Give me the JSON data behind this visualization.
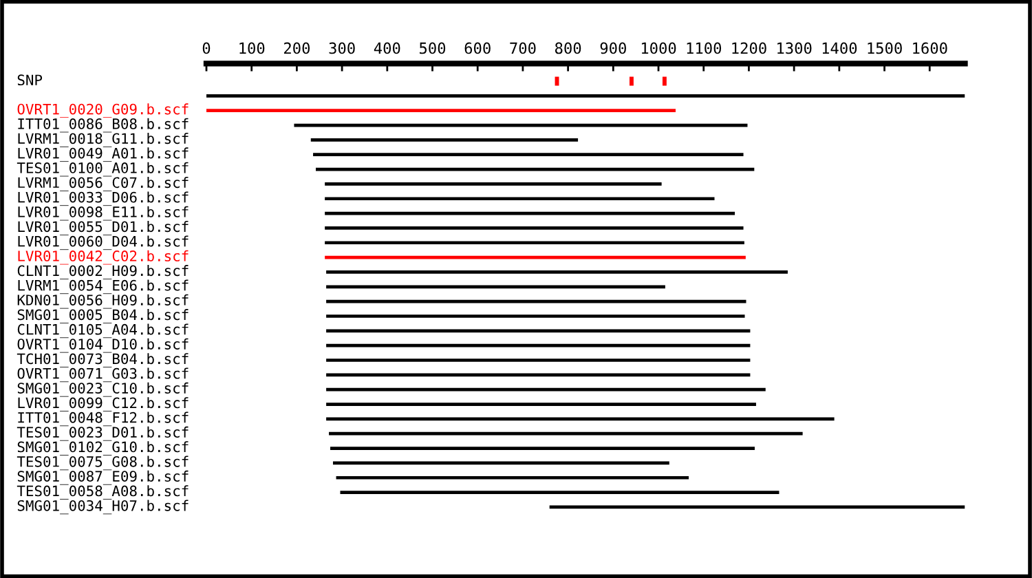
{
  "chart_data": {
    "type": "bar",
    "orientation": "horizontal",
    "categories": [
      "SNP",
      null,
      "OVRT1_0020_G09.b.scf",
      "ITT01_0086_B08.b.scf",
      "LVRM1_0018_G11.b.scf",
      "LVR01_0049_A01.b.scf",
      "TES01_0100_A01.b.scf",
      "LVRM1_0056_C07.b.scf",
      "LVR01_0033_D06.b.scf",
      "LVR01_0098_E11.b.scf",
      "LVR01_0055_D01.b.scf",
      "LVR01_0060_D04.b.scf",
      "LVR01_0042_C02.b.scf",
      "CLNT1_0002_H09.b.scf",
      "LVRM1_0054_E06.b.scf",
      "KDN01_0056_H09.b.scf",
      "SMG01_0005_B04.b.scf",
      "CLNT1_0105_A04.b.scf",
      "OVRT1_0104_D10.b.scf",
      "TCH01_0073_B04.b.scf",
      "OVRT1_0071_G03.b.scf",
      "SMG01_0023_C10.b.scf",
      "LVR01_0099_C12.b.scf",
      "ITT01_0048_F12.b.scf",
      "TES01_0023_D01.b.scf",
      "SMG01_0102_G10.b.scf",
      "TES01_0075_G08.b.scf",
      "SMG01_0087_E09.b.scf",
      "TES01_0058_A08.b.scf",
      "SMG01_0034_H07.b.scf"
    ],
    "series": [
      {
        "base": [
          null,
          0,
          0,
          194,
          231,
          236,
          242,
          262,
          262,
          262,
          262,
          262,
          262,
          265,
          265,
          265,
          265,
          265,
          265,
          265,
          265,
          265,
          265,
          265,
          271,
          274,
          280,
          287,
          296,
          759
        ],
        "values": [
          null,
          1678,
          1038,
          1003,
          591,
          952,
          970,
          745,
          862,
          907,
          926,
          928,
          931,
          1021,
          750,
          929,
          926,
          938,
          938,
          938,
          938,
          972,
          951,
          1124,
          1048,
          939,
          744,
          780,
          971,
          919
        ],
        "colors": [
          "#000000",
          "#000000",
          "#ff0000",
          "#000000",
          "#000000",
          "#000000",
          "#000000",
          "#000000",
          "#000000",
          "#000000",
          "#000000",
          "#000000",
          "#ff0000",
          "#000000",
          "#000000",
          "#000000",
          "#000000",
          "#000000",
          "#000000",
          "#000000",
          "#000000",
          "#000000",
          "#000000",
          "#000000",
          "#000000",
          "#000000",
          "#000000",
          "#000000",
          "#000000",
          "#000000"
        ]
      },
      {
        "color": "#ff0000",
        "base": [
          771,
          null,
          null,
          null,
          null,
          null,
          null,
          null,
          null,
          null,
          null,
          null,
          null,
          null,
          null,
          null,
          null,
          null,
          null,
          null,
          null,
          null,
          null,
          null,
          null,
          null,
          null,
          null,
          null,
          null
        ],
        "values": [
          9,
          null,
          null,
          null,
          null,
          null,
          null,
          null,
          null,
          null,
          null,
          null,
          null,
          null,
          null,
          null,
          null,
          null,
          null,
          null,
          null,
          null,
          null,
          null,
          null,
          null,
          null,
          null,
          null,
          null
        ]
      },
      {
        "color": "#ff0000",
        "base": [
          936,
          null,
          null,
          null,
          null,
          null,
          null,
          null,
          null,
          null,
          null,
          null,
          null,
          null,
          null,
          null,
          null,
          null,
          null,
          null,
          null,
          null,
          null,
          null,
          null,
          null,
          null,
          null,
          null,
          null
        ],
        "values": [
          9,
          null,
          null,
          null,
          null,
          null,
          null,
          null,
          null,
          null,
          null,
          null,
          null,
          null,
          null,
          null,
          null,
          null,
          null,
          null,
          null,
          null,
          null,
          null,
          null,
          null,
          null,
          null,
          null,
          null
        ]
      },
      {
        "color": "#ff0000",
        "base": [
          1009,
          null,
          null,
          null,
          null,
          null,
          null,
          null,
          null,
          null,
          null,
          null,
          null,
          null,
          null,
          null,
          null,
          null,
          null,
          null,
          null,
          null,
          null,
          null,
          null,
          null,
          null,
          null,
          null,
          null
        ],
        "values": [
          9,
          null,
          null,
          null,
          null,
          null,
          null,
          null,
          null,
          null,
          null,
          null,
          null,
          null,
          null,
          null,
          null,
          null,
          null,
          null,
          null,
          null,
          null,
          null,
          null,
          null,
          null,
          null,
          null,
          null
        ]
      }
    ],
    "xlim": [
      0,
      1678
    ],
    "xticks": [
      0,
      100,
      200,
      300,
      400,
      500,
      600,
      700,
      800,
      900,
      1000,
      1100,
      1200,
      1300,
      1400,
      1500,
      1600
    ],
    "grid": false,
    "legend": false
  }
}
